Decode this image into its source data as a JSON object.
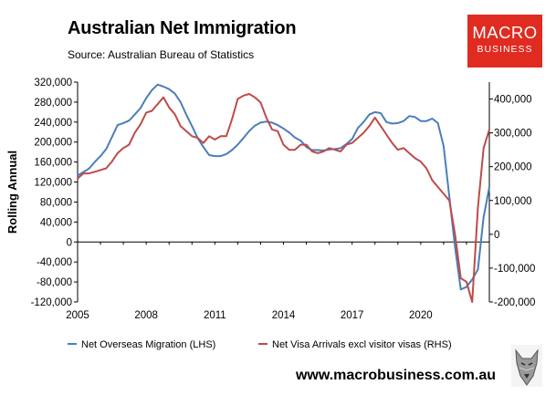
{
  "header": {
    "title": "Australian Net Immigration",
    "source": "Source: Australian Bureau of Statistics"
  },
  "logo": {
    "line1": "MACRO",
    "line2": "BUSINESS"
  },
  "footer": {
    "website": "www.macrobusiness.com.au"
  },
  "colors": {
    "blue": "#4a7ebb",
    "red": "#be4b48",
    "logo_bg": "#e02b20",
    "axis": "#000000"
  },
  "icons": {
    "logo_mascot": "wolf-icon"
  },
  "chart_data": {
    "type": "line",
    "ylabel": "Rolling Annual",
    "x_ticks": [
      "2005",
      "2008",
      "2011",
      "2014",
      "2017",
      "2020"
    ],
    "xlim": [
      2005,
      2022.25
    ],
    "left_axis": {
      "ylim": [
        -120000,
        320000
      ],
      "ticks": [
        320000,
        280000,
        240000,
        200000,
        160000,
        120000,
        80000,
        40000,
        0,
        -40000,
        -80000,
        -120000
      ],
      "tick_labels": [
        "320,000",
        "280,000",
        "240,000",
        "200,000",
        "160,000",
        "120,000",
        "80,000",
        "40,000",
        "0",
        "-40,000",
        "-80,000",
        "-120,000"
      ]
    },
    "right_axis": {
      "ylim": [
        -200000,
        450000
      ],
      "ticks": [
        400000,
        300000,
        200000,
        100000,
        0,
        -100000,
        -200000
      ],
      "tick_labels": [
        "400,000",
        "300,000",
        "200,000",
        "100,000",
        "0",
        "-100,000",
        "-200,000"
      ]
    },
    "legend": {
      "position": "bottom"
    },
    "grid": false,
    "series": [
      {
        "name": "Net Overseas Migration (LHS)",
        "color": "#4a7ebb",
        "axis": "left",
        "points": [
          [
            2005.0,
            133000
          ],
          [
            2005.25,
            140000
          ],
          [
            2005.5,
            147000
          ],
          [
            2005.75,
            160000
          ],
          [
            2006.0,
            172000
          ],
          [
            2006.25,
            186000
          ],
          [
            2006.5,
            210000
          ],
          [
            2006.75,
            234000
          ],
          [
            2007.0,
            238000
          ],
          [
            2007.25,
            243000
          ],
          [
            2007.5,
            255000
          ],
          [
            2007.75,
            268000
          ],
          [
            2008.0,
            288000
          ],
          [
            2008.25,
            304000
          ],
          [
            2008.5,
            315000
          ],
          [
            2008.75,
            311000
          ],
          [
            2009.0,
            306000
          ],
          [
            2009.25,
            297000
          ],
          [
            2009.5,
            280000
          ],
          [
            2009.75,
            255000
          ],
          [
            2010.0,
            232000
          ],
          [
            2010.25,
            208000
          ],
          [
            2010.5,
            190000
          ],
          [
            2010.75,
            174000
          ],
          [
            2011.0,
            172000
          ],
          [
            2011.25,
            172000
          ],
          [
            2011.5,
            176000
          ],
          [
            2011.75,
            184000
          ],
          [
            2012.0,
            195000
          ],
          [
            2012.25,
            208000
          ],
          [
            2012.5,
            222000
          ],
          [
            2012.75,
            233000
          ],
          [
            2013.0,
            239000
          ],
          [
            2013.25,
            241000
          ],
          [
            2013.5,
            239000
          ],
          [
            2013.75,
            234000
          ],
          [
            2014.0,
            227000
          ],
          [
            2014.25,
            219000
          ],
          [
            2014.5,
            209000
          ],
          [
            2014.75,
            203000
          ],
          [
            2015.0,
            190000
          ],
          [
            2015.25,
            184000
          ],
          [
            2015.5,
            184000
          ],
          [
            2015.75,
            183000
          ],
          [
            2016.0,
            185000
          ],
          [
            2016.25,
            186000
          ],
          [
            2016.5,
            188000
          ],
          [
            2016.75,
            196000
          ],
          [
            2017.0,
            206000
          ],
          [
            2017.25,
            228000
          ],
          [
            2017.5,
            240000
          ],
          [
            2017.75,
            255000
          ],
          [
            2018.0,
            260000
          ],
          [
            2018.25,
            258000
          ],
          [
            2018.5,
            240000
          ],
          [
            2018.75,
            237000
          ],
          [
            2019.0,
            238000
          ],
          [
            2019.25,
            242000
          ],
          [
            2019.5,
            252000
          ],
          [
            2019.75,
            250000
          ],
          [
            2020.0,
            242000
          ],
          [
            2020.25,
            242000
          ],
          [
            2020.5,
            247000
          ],
          [
            2020.75,
            238000
          ],
          [
            2021.0,
            192000
          ],
          [
            2021.25,
            90000
          ],
          [
            2021.5,
            -10000
          ],
          [
            2021.75,
            -95000
          ],
          [
            2022.0,
            -90000
          ],
          [
            2022.25,
            -75000
          ],
          [
            2022.5,
            -55000
          ],
          [
            2022.75,
            50000
          ],
          [
            2023.0,
            110000
          ]
        ]
      },
      {
        "name": "Net Visa Arrivals excl visitor visas (RHS)",
        "color": "#be4b48",
        "axis": "right",
        "points": [
          [
            2005.0,
            165000
          ],
          [
            2005.25,
            180000
          ],
          [
            2005.5,
            180000
          ],
          [
            2005.75,
            185000
          ],
          [
            2006.0,
            190000
          ],
          [
            2006.25,
            195000
          ],
          [
            2006.5,
            215000
          ],
          [
            2006.75,
            240000
          ],
          [
            2007.0,
            255000
          ],
          [
            2007.25,
            265000
          ],
          [
            2007.5,
            300000
          ],
          [
            2007.75,
            325000
          ],
          [
            2008.0,
            360000
          ],
          [
            2008.25,
            365000
          ],
          [
            2008.5,
            385000
          ],
          [
            2008.75,
            405000
          ],
          [
            2009.0,
            375000
          ],
          [
            2009.25,
            355000
          ],
          [
            2009.5,
            320000
          ],
          [
            2009.75,
            305000
          ],
          [
            2010.0,
            290000
          ],
          [
            2010.25,
            285000
          ],
          [
            2010.5,
            270000
          ],
          [
            2010.75,
            290000
          ],
          [
            2011.0,
            280000
          ],
          [
            2011.25,
            290000
          ],
          [
            2011.5,
            290000
          ],
          [
            2011.75,
            340000
          ],
          [
            2012.0,
            400000
          ],
          [
            2012.25,
            410000
          ],
          [
            2012.5,
            415000
          ],
          [
            2012.75,
            405000
          ],
          [
            2013.0,
            390000
          ],
          [
            2013.25,
            345000
          ],
          [
            2013.5,
            310000
          ],
          [
            2013.75,
            305000
          ],
          [
            2014.0,
            265000
          ],
          [
            2014.25,
            250000
          ],
          [
            2014.5,
            250000
          ],
          [
            2014.75,
            265000
          ],
          [
            2015.0,
            265000
          ],
          [
            2015.25,
            245000
          ],
          [
            2015.5,
            240000
          ],
          [
            2015.75,
            245000
          ],
          [
            2016.0,
            255000
          ],
          [
            2016.25,
            250000
          ],
          [
            2016.5,
            245000
          ],
          [
            2016.75,
            265000
          ],
          [
            2017.0,
            270000
          ],
          [
            2017.25,
            285000
          ],
          [
            2017.5,
            300000
          ],
          [
            2017.75,
            320000
          ],
          [
            2018.0,
            345000
          ],
          [
            2018.25,
            320000
          ],
          [
            2018.5,
            295000
          ],
          [
            2018.75,
            270000
          ],
          [
            2019.0,
            250000
          ],
          [
            2019.25,
            255000
          ],
          [
            2019.5,
            240000
          ],
          [
            2019.75,
            225000
          ],
          [
            2020.0,
            215000
          ],
          [
            2020.25,
            195000
          ],
          [
            2020.5,
            160000
          ],
          [
            2020.75,
            140000
          ],
          [
            2021.0,
            120000
          ],
          [
            2021.25,
            100000
          ],
          [
            2021.5,
            0
          ],
          [
            2021.75,
            -130000
          ],
          [
            2022.0,
            -140000
          ],
          [
            2022.25,
            -200000
          ],
          [
            2022.5,
            80000
          ],
          [
            2022.75,
            255000
          ],
          [
            2023.0,
            310000
          ]
        ]
      }
    ]
  }
}
